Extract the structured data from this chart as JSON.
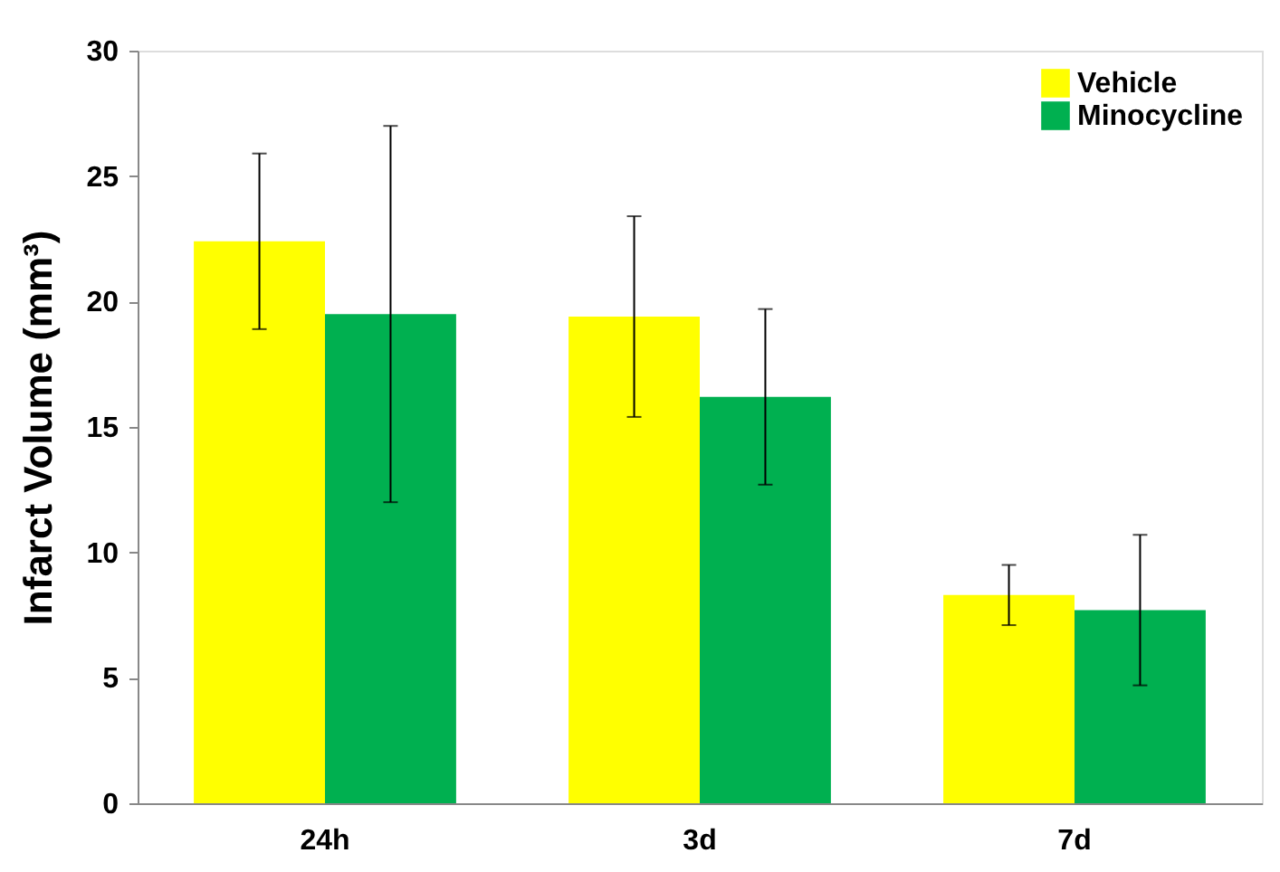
{
  "chart_data": {
    "type": "bar",
    "ylabel": "Infarct Volume (mm³)",
    "categories": [
      "24h",
      "3d",
      "7d"
    ],
    "series": [
      {
        "name": "Vehicle",
        "color": "#ffff00",
        "values": [
          22.4,
          19.4,
          8.3
        ],
        "errors": [
          3.5,
          4,
          1.2
        ]
      },
      {
        "name": "Minocycline",
        "color": "#00b050",
        "values": [
          19.5,
          16.2,
          7.7
        ],
        "errors": [
          7.5,
          3.5,
          3
        ]
      }
    ],
    "ylim": [
      0,
      30
    ],
    "yticks": [
      0,
      5,
      10,
      15,
      20,
      25,
      30
    ],
    "grid": false,
    "legend": "top right"
  }
}
